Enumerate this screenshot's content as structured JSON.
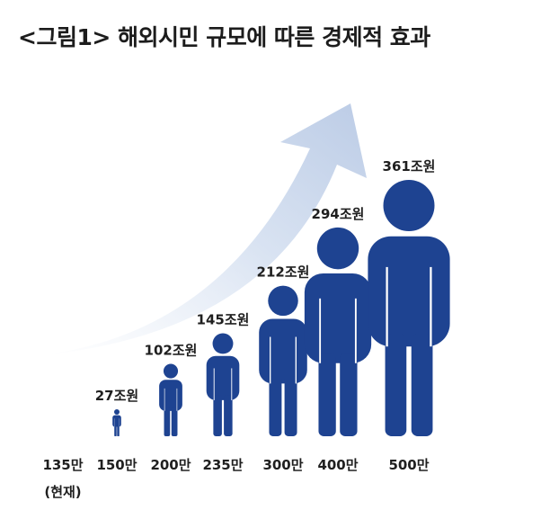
{
  "title": "<그림1> 해외시민 규모에 따른 경제적 효과",
  "chart_data": {
    "type": "bar",
    "categories": [
      "135만",
      "150만",
      "200만",
      "235만",
      "300만",
      "400만",
      "500만"
    ],
    "category_notes": [
      "(현재)",
      "",
      "",
      "",
      "",
      "",
      ""
    ],
    "values": [
      null,
      27,
      102,
      145,
      212,
      294,
      361
    ],
    "value_labels": [
      "",
      "27조원",
      "102조원",
      "145조원",
      "212조원",
      "294조원",
      "361조원"
    ],
    "colors": {
      "figure": "#1e4391",
      "arrow": "#c5d3ea",
      "text": "#1f1f1f"
    }
  }
}
